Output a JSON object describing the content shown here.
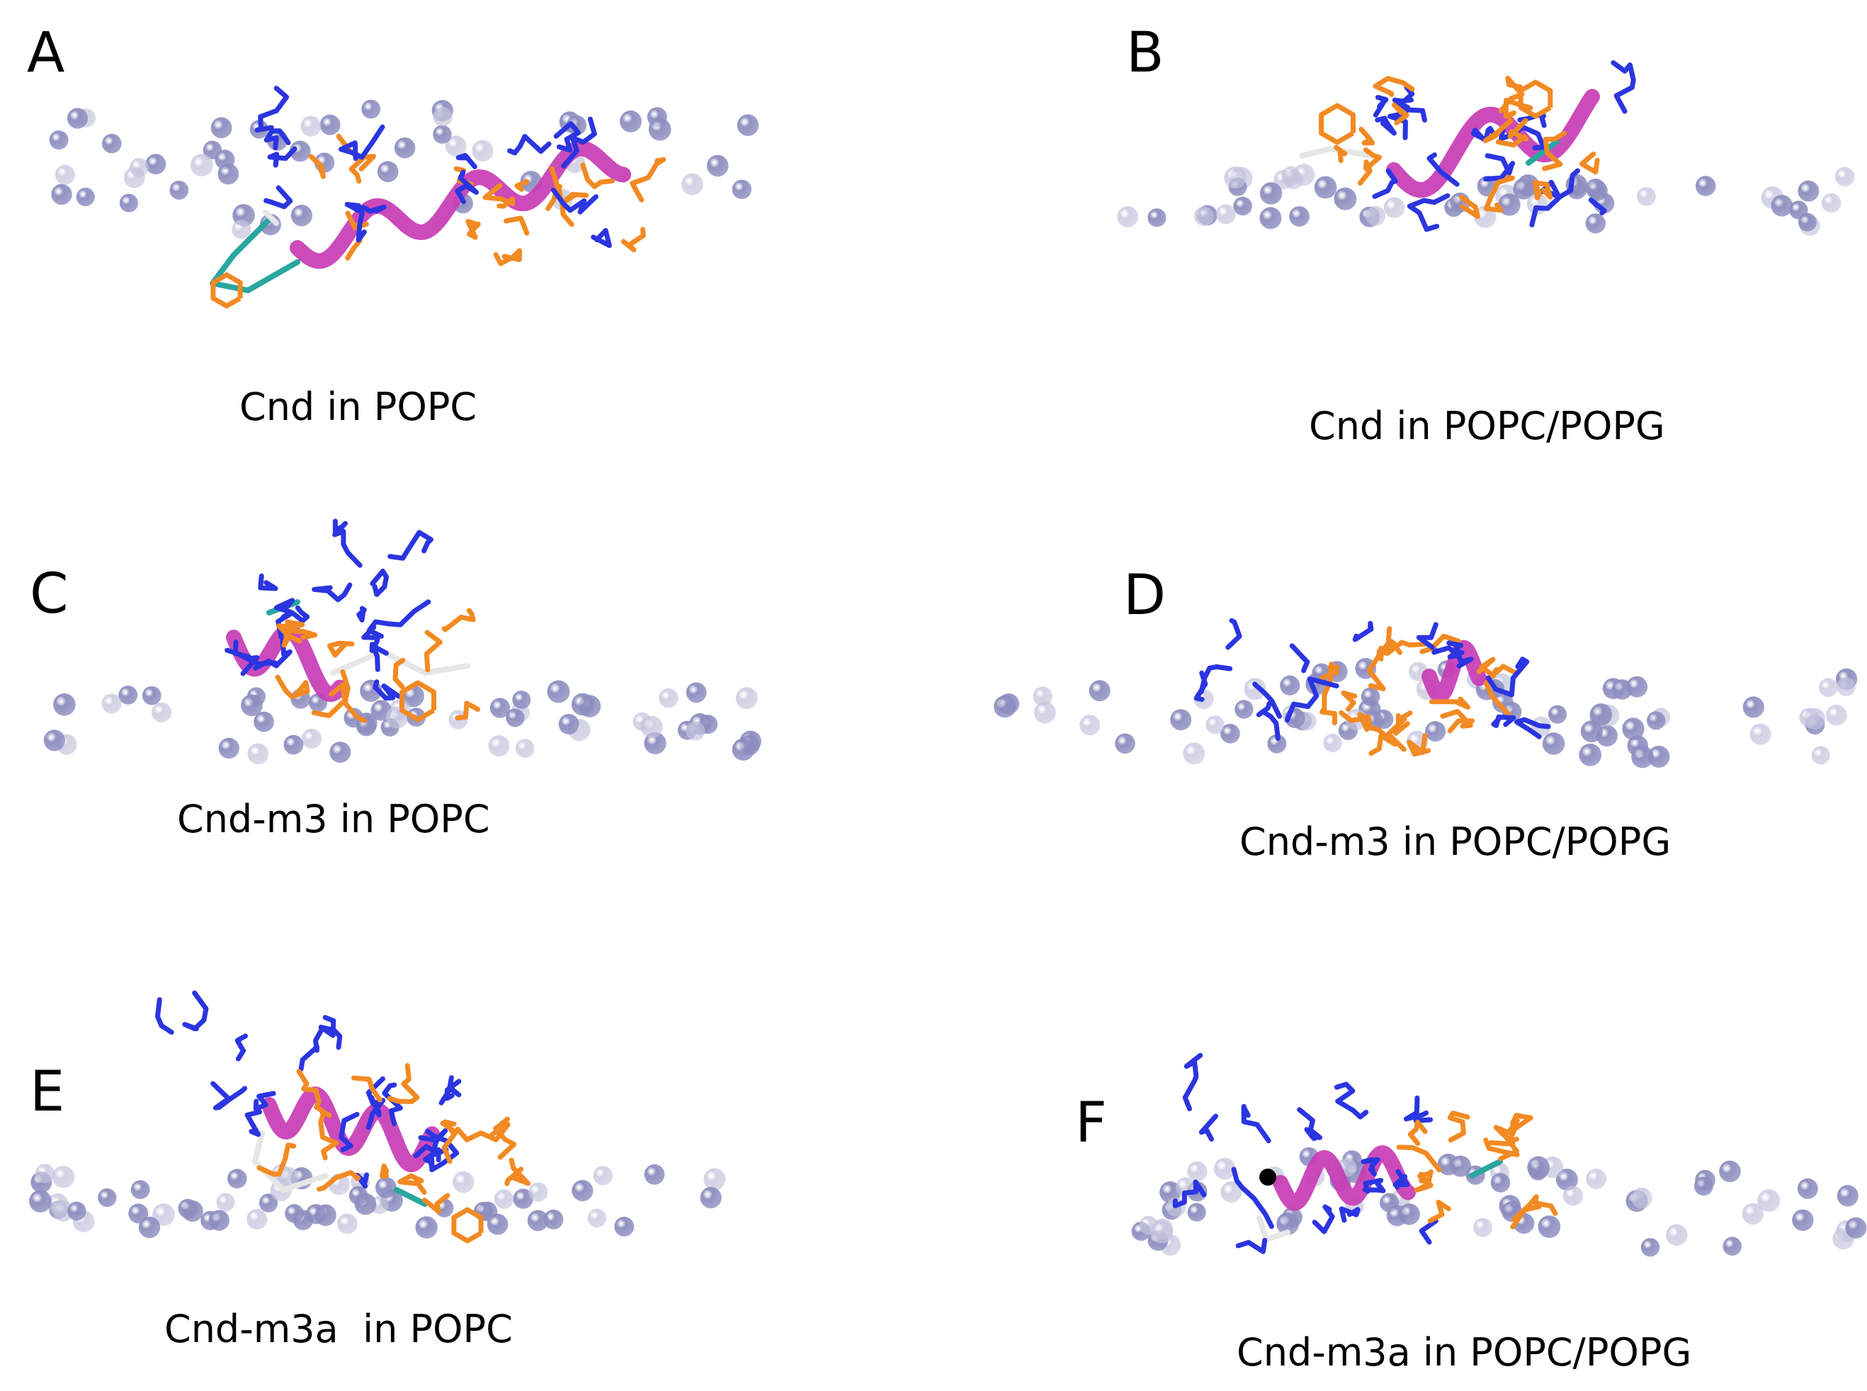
{
  "figure": {
    "panels": [
      {
        "id": "A",
        "letter": "A",
        "caption": "Cnd in POPC"
      },
      {
        "id": "B",
        "letter": "B",
        "caption": "Cnd in POPC/POPG"
      },
      {
        "id": "C",
        "letter": "C",
        "caption": "Cnd-m3 in POPC"
      },
      {
        "id": "D",
        "letter": "D",
        "caption": "Cnd-m3 in POPC/POPG"
      },
      {
        "id": "E",
        "letter": "E",
        "caption": "Cnd-m3a  in POPC"
      },
      {
        "id": "F",
        "letter": "F",
        "caption": "Cnd-m3a in POPC/POPG"
      }
    ]
  },
  "colors": {
    "lipid_bead": "#8c8cbf",
    "lipid_bead_light": "#c3c3dd",
    "helix": "#c83cb4",
    "coil_teal": "#2aa6a0",
    "coil_white": "#e6e6e6",
    "cationic_residue": "#2b35e0",
    "hydrophobic_residue": "#f28a23",
    "marker": "#000000"
  }
}
